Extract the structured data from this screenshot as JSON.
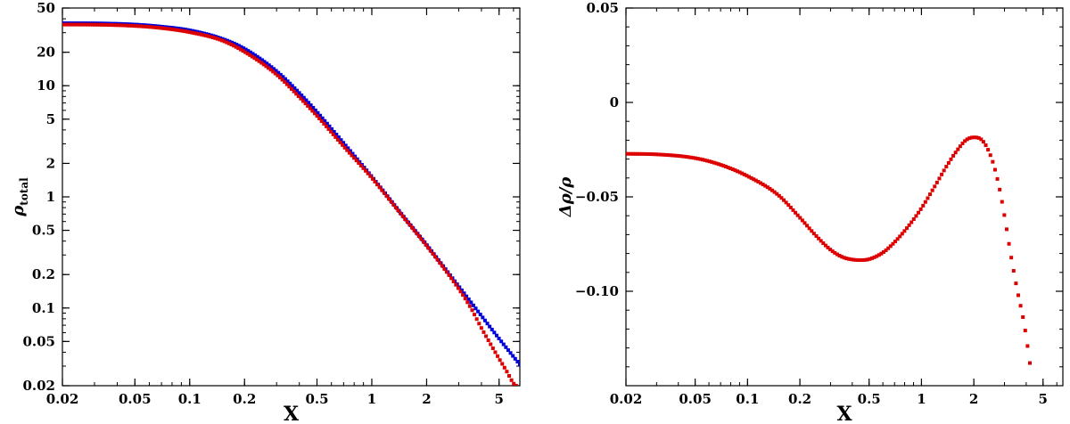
{
  "chart_data": [
    {
      "type": "scatter",
      "xlabel": "X",
      "ylabel": "ρ",
      "ylabel_sub": "total",
      "xscale": "log",
      "yscale": "log",
      "xlim": [
        0.02,
        6.5
      ],
      "ylim": [
        0.02,
        50
      ],
      "grid": false,
      "legend": "none",
      "x_ticks": [
        "0.02",
        "0.05",
        "0.1",
        "0.2",
        "0.5",
        "1",
        "2",
        "5"
      ],
      "y_ticks": [
        "0.02",
        "0.05",
        "0.1",
        "0.2",
        "0.5",
        "1",
        "2",
        "5",
        "10",
        "20",
        "50"
      ],
      "series": [
        {
          "color": "#0000dd",
          "x": [
            0.02,
            0.03,
            0.05,
            0.07,
            0.1,
            0.15,
            0.2,
            0.3,
            0.4,
            0.5,
            0.7,
            1.0,
            1.5,
            2.0,
            3.0,
            4.0,
            5.0,
            6.5
          ],
          "y": [
            36.5,
            36.4,
            35.5,
            34.0,
            31.5,
            26.5,
            21.5,
            13.5,
            8.6,
            5.8,
            3.05,
            1.52,
            0.66,
            0.37,
            0.157,
            0.085,
            0.053,
            0.031
          ]
        },
        {
          "color": "#dd0000",
          "x": [
            0.02,
            0.03,
            0.05,
            0.07,
            0.1,
            0.15,
            0.2,
            0.3,
            0.4,
            0.5,
            0.7,
            1.0,
            1.5,
            2.0,
            3.0,
            3.5,
            4.0,
            4.5,
            5.0,
            5.5,
            6.0,
            6.2
          ],
          "y": [
            35.5,
            35.4,
            34.5,
            33.0,
            30.3,
            25.6,
            20.2,
            12.6,
            7.9,
            5.35,
            2.85,
            1.48,
            0.65,
            0.363,
            0.149,
            0.1,
            0.066,
            0.047,
            0.035,
            0.027,
            0.021,
            0.02
          ]
        }
      ]
    },
    {
      "type": "scatter",
      "xlabel": "X",
      "ylabel": "Δρ/ρ",
      "xscale": "log",
      "yscale": "linear",
      "xlim": [
        0.02,
        6.5
      ],
      "ylim": [
        -0.15,
        0.05
      ],
      "grid": false,
      "legend": "none",
      "x_ticks": [
        "0.02",
        "0.05",
        "0.1",
        "0.2",
        "0.5",
        "1",
        "2",
        "5"
      ],
      "y_ticks": [
        "0.05",
        "0",
        "−0.05",
        "−0.10"
      ],
      "series": [
        {
          "color": "#dd0000",
          "x": [
            0.02,
            0.03,
            0.05,
            0.07,
            0.1,
            0.15,
            0.2,
            0.25,
            0.3,
            0.35,
            0.4,
            0.45,
            0.5,
            0.6,
            0.7,
            0.85,
            1.0,
            1.2,
            1.4,
            1.6,
            1.8,
            2.0,
            2.2,
            2.4,
            2.6,
            2.8,
            3.0,
            3.2,
            3.4,
            3.6,
            3.8,
            4.0,
            4.2
          ],
          "y": [
            -0.0272,
            -0.0275,
            -0.0295,
            -0.033,
            -0.039,
            -0.049,
            -0.061,
            -0.071,
            -0.078,
            -0.0818,
            -0.0832,
            -0.0835,
            -0.083,
            -0.0795,
            -0.074,
            -0.065,
            -0.056,
            -0.044,
            -0.0335,
            -0.0255,
            -0.02,
            -0.0185,
            -0.0195,
            -0.0245,
            -0.033,
            -0.045,
            -0.06,
            -0.076,
            -0.09,
            -0.102,
            -0.112,
            -0.124,
            -0.138
          ]
        }
      ]
    }
  ]
}
